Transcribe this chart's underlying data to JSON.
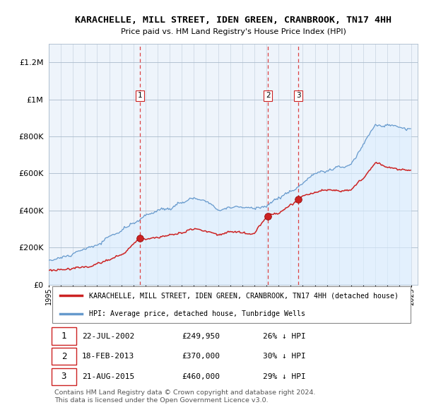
{
  "title": "KARACHELLE, MILL STREET, IDEN GREEN, CRANBROOK, TN17 4HH",
  "subtitle": "Price paid vs. HM Land Registry's House Price Index (HPI)",
  "ytick_values": [
    0,
    200000,
    400000,
    600000,
    800000,
    1000000,
    1200000
  ],
  "ytick_labels": [
    "£0",
    "£200K",
    "£400K",
    "£600K",
    "£800K",
    "£1M",
    "£1.2M"
  ],
  "ylim": [
    0,
    1300000
  ],
  "xlim_start": 1995.0,
  "xlim_end": 2025.5,
  "sale_dates": [
    2002.55,
    2013.12,
    2015.64
  ],
  "sale_prices": [
    249950,
    370000,
    460000
  ],
  "sale_labels": [
    "1",
    "2",
    "3"
  ],
  "vline_color": "#dd4444",
  "hpi_line_color": "#6699cc",
  "hpi_fill_color": "#ddeeff",
  "price_line_color": "#cc2222",
  "legend_label_price": "KARACHELLE, MILL STREET, IDEN GREEN, CRANBROOK, TN17 4HH (detached house)",
  "legend_label_hpi": "HPI: Average price, detached house, Tunbridge Wells",
  "table_data": [
    [
      "1",
      "22-JUL-2002",
      "£249,950",
      "26% ↓ HPI"
    ],
    [
      "2",
      "18-FEB-2013",
      "£370,000",
      "30% ↓ HPI"
    ],
    [
      "3",
      "21-AUG-2015",
      "£460,000",
      "29% ↓ HPI"
    ]
  ],
  "footer": "Contains HM Land Registry data © Crown copyright and database right 2024.\nThis data is licensed under the Open Government Licence v3.0.",
  "background_color": "#ffffff",
  "chart_bg_color": "#eef4fb",
  "grid_color": "#aabbcc"
}
